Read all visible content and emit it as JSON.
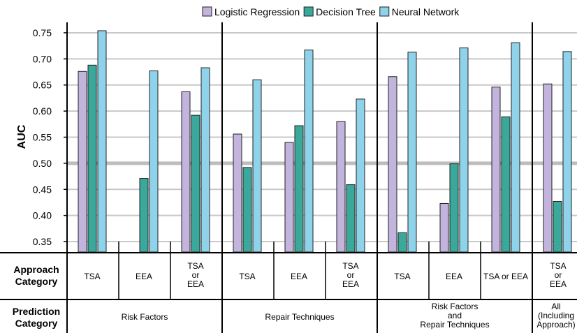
{
  "chart_data": {
    "type": "bar",
    "ylabel": "AUC",
    "ylim": [
      0.33,
      0.77
    ],
    "yticks": [
      "0.35",
      "0.40",
      "0.45",
      "0.50",
      "0.55",
      "0.60",
      "0.65",
      "0.70",
      "0.75"
    ],
    "grid": true,
    "legend_position": "top-center",
    "series": [
      {
        "name": "Logistic Regression",
        "color": "#c2b4dd",
        "values": [
          0.676,
          null,
          0.637,
          0.556,
          0.54,
          0.58,
          0.666,
          0.423,
          0.646,
          0.652
        ]
      },
      {
        "name": "Decision Tree",
        "color": "#3aa89a",
        "values": [
          0.688,
          0.471,
          0.592,
          0.492,
          0.572,
          0.459,
          0.367,
          0.499,
          0.589,
          0.427
        ]
      },
      {
        "name": "Neural Network",
        "color": "#8fd3ea",
        "values": [
          0.754,
          0.677,
          0.683,
          0.66,
          0.717,
          0.623,
          0.713,
          0.721,
          0.731,
          0.714
        ]
      }
    ],
    "approach_row_label": [
      "Approach",
      "Category"
    ],
    "prediction_row_label": [
      "Prediction",
      "Category"
    ],
    "categories": [
      {
        "approach": [
          "TSA"
        ],
        "prediction_index": 0
      },
      {
        "approach": [
          "EEA"
        ],
        "prediction_index": 0
      },
      {
        "approach": [
          "TSA",
          "or",
          "EEA"
        ],
        "prediction_index": 0
      },
      {
        "approach": [
          "TSA"
        ],
        "prediction_index": 1
      },
      {
        "approach": [
          "EEA"
        ],
        "prediction_index": 1
      },
      {
        "approach": [
          "TSA",
          "or",
          "EEA"
        ],
        "prediction_index": 1
      },
      {
        "approach": [
          "TSA"
        ],
        "prediction_index": 2
      },
      {
        "approach": [
          "EEA"
        ],
        "prediction_index": 2
      },
      {
        "approach": [
          "TSA or EEA"
        ],
        "prediction_index": 2
      },
      {
        "approach": [
          "TSA",
          "or",
          "EEA"
        ],
        "prediction_index": 3
      }
    ],
    "prediction_groups": [
      {
        "label": [
          "Risk Factors"
        ]
      },
      {
        "label": [
          "Repair Techniques"
        ]
      },
      {
        "label": [
          "Risk Factors",
          "and",
          "Repair Techniques"
        ]
      },
      {
        "label": [
          "All",
          "(Including",
          "Approach)"
        ]
      }
    ]
  }
}
